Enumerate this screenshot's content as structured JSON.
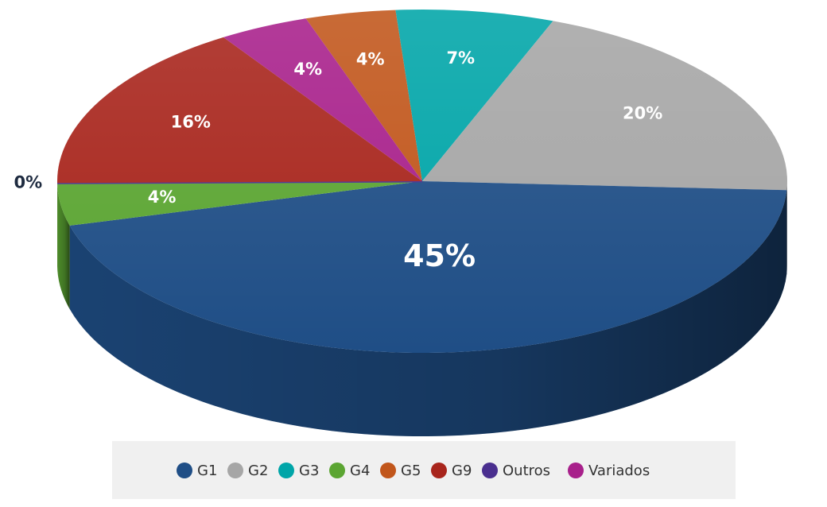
{
  "chart_data": {
    "type": "pie",
    "categories": [
      "G1",
      "G2",
      "G3",
      "G4",
      "G5",
      "G9",
      "Outros",
      "Variados"
    ],
    "values": [
      45,
      20,
      7,
      4,
      4,
      16,
      0,
      4
    ],
    "value_labels": [
      "45%",
      "20%",
      "7%",
      "4%",
      "4%",
      "16%",
      "0%",
      "4%"
    ],
    "colors": [
      "#1f4e86",
      "#a6a6a6",
      "#00a5a8",
      "#5ba532",
      "#c1561b",
      "#a8251c",
      "#4a2f8f",
      "#a8208b"
    ],
    "legend": "bottom"
  }
}
